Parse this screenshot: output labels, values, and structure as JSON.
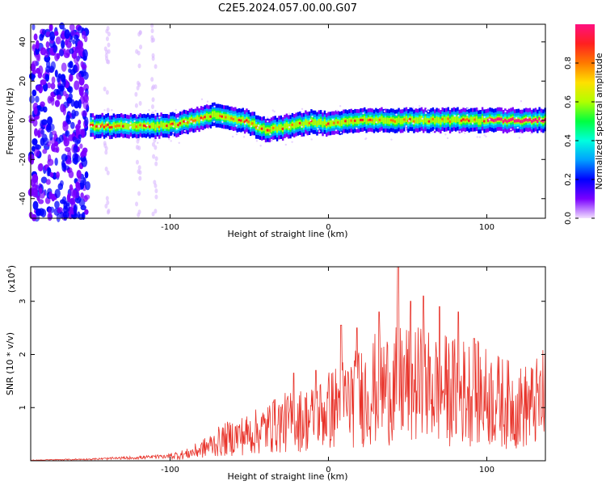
{
  "title": "C2E5.2024.057.00.00.G07",
  "chart_data": [
    {
      "type": "heatmap",
      "xlabel": "Height of straight line (km)",
      "ylabel": "Frequency (Hz)",
      "xlim": [
        -188,
        137
      ],
      "ylim": [
        -50,
        49
      ],
      "x_ticks": [
        -100,
        0,
        100
      ],
      "y_ticks": [
        -40,
        -20,
        0,
        20,
        40
      ],
      "colorbar": {
        "label": "Normalized spectral amplitude",
        "range": [
          0,
          1
        ],
        "ticks": [
          0.0,
          0.2,
          0.4,
          0.6,
          0.8
        ],
        "colors": [
          "#f2e0ff",
          "#7a00ff",
          "#0000ff",
          "#00a0ff",
          "#00ffdd",
          "#00ff40",
          "#b0ff00",
          "#ffe000",
          "#ff7a00",
          "#ff2020",
          "#ff1080"
        ]
      },
      "ridge": {
        "description_points_x": [
          -150,
          -130,
          -110,
          -95,
          -80,
          -70,
          -60,
          -50,
          -40,
          -30,
          -20,
          -10,
          0,
          20,
          40,
          60,
          80,
          100,
          137
        ],
        "description_points_y": [
          -3,
          -3,
          -3,
          -2,
          1,
          3,
          1,
          -1,
          -5,
          -4,
          -2,
          -1,
          -2,
          0,
          0,
          0,
          0,
          0,
          0
        ]
      },
      "noise_region_x": [
        -188,
        -150
      ]
    },
    {
      "type": "line",
      "xlabel": "Height of straight line (km)",
      "ylabel": "SNR (10 * v/v)",
      "multiplier": "(x10",
      "multiplier_exp": "4",
      "xlim": [
        -188,
        137
      ],
      "ylim": [
        0,
        3.65
      ],
      "x_ticks": [
        -100,
        0,
        100
      ],
      "y_ticks": [
        1,
        2,
        3
      ],
      "series": [
        {
          "color": "#e8332a",
          "x": [
            -188,
            -170,
            -150,
            -130,
            -110,
            -100,
            -90,
            -80,
            -70,
            -60,
            -50,
            -40,
            -30,
            -20,
            -10,
            0,
            10,
            20,
            30,
            40,
            50,
            60,
            70,
            80,
            90,
            100,
            110,
            120,
            130,
            137
          ],
          "y": [
            0.01,
            0.02,
            0.03,
            0.05,
            0.07,
            0.09,
            0.12,
            0.22,
            0.35,
            0.45,
            0.5,
            0.6,
            0.7,
            0.75,
            0.8,
            0.95,
            1.1,
            1.2,
            1.35,
            1.4,
            1.45,
            1.4,
            1.35,
            1.3,
            1.3,
            1.2,
            1.1,
            1.0,
            1.05,
            1.2
          ],
          "peaks": {
            "x": [
              -35,
              -22,
              -8,
              8,
              18,
              32,
              44,
              52,
              60,
              70,
              82,
              92
            ],
            "y": [
              1.1,
              1.65,
              1.7,
              2.55,
              2.5,
              2.8,
              3.65,
              3.0,
              3.1,
              2.9,
              2.8,
              2.3
            ]
          }
        }
      ]
    }
  ]
}
